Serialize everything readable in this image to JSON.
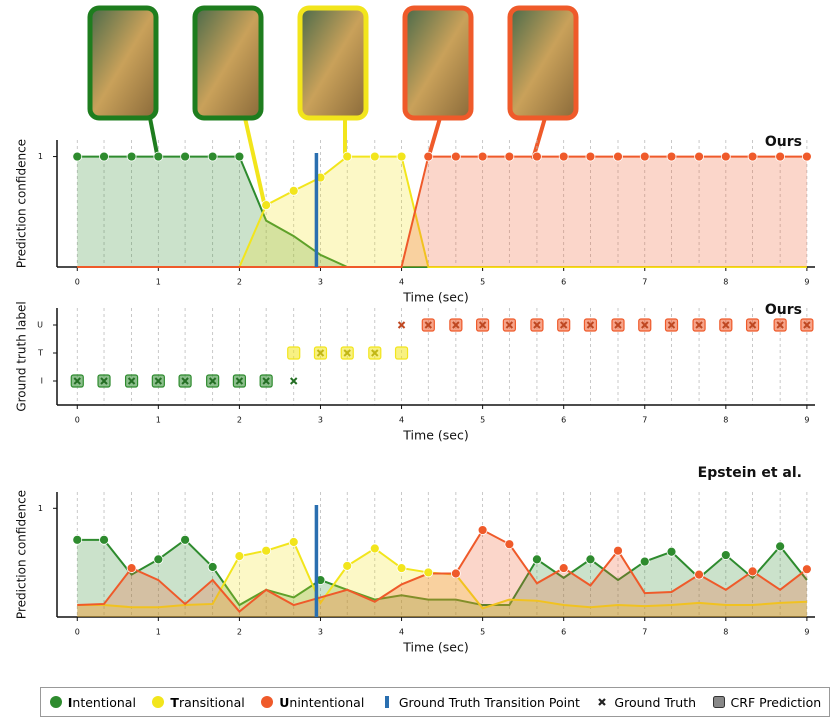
{
  "chart_data": [
    {
      "type": "line",
      "title": "Ours",
      "ylabel": "Prediction confidence",
      "xlabel": "Time (sec)",
      "x": [
        0,
        0.33,
        0.67,
        1,
        1.33,
        1.67,
        2,
        2.33,
        2.67,
        3,
        3.33,
        3.67,
        4,
        4.33,
        4.67,
        5,
        5.33,
        5.67,
        6,
        6.33,
        6.67,
        7,
        7.33,
        7.67,
        8,
        8.33,
        8.67,
        9
      ],
      "xlim": [
        -0.25,
        9.1
      ],
      "xticks": [
        0,
        1,
        2,
        3,
        4,
        5,
        6,
        7,
        8,
        9
      ],
      "ylim": [
        0,
        1.15
      ],
      "yticks": [
        1
      ],
      "grid": "x",
      "vline": 2.95,
      "vline_color": "#2a6fb0",
      "series": [
        {
          "color": "#2e8b2e",
          "values": [
            1,
            1,
            1,
            1,
            1,
            1,
            1,
            0.42,
            0.28,
            0.11,
            0,
            0,
            0,
            0,
            0,
            0,
            0,
            0,
            0,
            0,
            0,
            0,
            0,
            0,
            0,
            0,
            0,
            0
          ]
        },
        {
          "color": "#f2e51c",
          "values": [
            0,
            0,
            0,
            0,
            0,
            0,
            0,
            0.56,
            0.69,
            0.81,
            1,
            1,
            1,
            0,
            0,
            0,
            0,
            0,
            0,
            0,
            0,
            0,
            0,
            0,
            0,
            0,
            0,
            0
          ]
        },
        {
          "color": "#ef5a2a",
          "values": [
            0,
            0,
            0,
            0,
            0,
            0,
            0,
            0,
            0,
            0,
            0,
            0,
            0,
            1,
            1,
            1,
            1,
            1,
            1,
            1,
            1,
            1,
            1,
            1,
            1,
            1,
            1,
            1
          ]
        }
      ]
    },
    {
      "type": "category_scatter",
      "title": "Ours",
      "ylabel": "Ground truth label",
      "xlabel": "Time (sec)",
      "x": [
        0,
        0.33,
        0.67,
        1,
        1.33,
        1.67,
        2,
        2.33,
        2.67,
        3,
        3.33,
        3.67,
        4,
        4.33,
        4.67,
        5,
        5.33,
        5.67,
        6,
        6.33,
        6.67,
        7,
        7.33,
        7.67,
        8,
        8.33,
        8.67,
        9
      ],
      "xlim": [
        -0.25,
        9.1
      ],
      "xticks": [
        0,
        1,
        2,
        3,
        4,
        5,
        6,
        7,
        8,
        9
      ],
      "grid": "x",
      "categories": [
        "I",
        "T",
        "U"
      ],
      "category_colors": [
        "#2e8b2e",
        "#f2e51c",
        "#ef5a2a"
      ],
      "series": [
        {
          "marker": "box",
          "values": [
            "I",
            "I",
            "I",
            "I",
            "I",
            "I",
            "I",
            "I",
            "T",
            "T",
            "T",
            "T",
            "T",
            "U",
            "U",
            "U",
            "U",
            "U",
            "U",
            "U",
            "U",
            "U",
            "U",
            "U",
            "U",
            "U",
            "U",
            "U"
          ]
        },
        {
          "marker": "cross",
          "values": [
            "I",
            "I",
            "I",
            "I",
            "I",
            "I",
            "I",
            "I",
            "I",
            "T",
            "T",
            "T",
            "U",
            "U",
            "U",
            "U",
            "U",
            "U",
            "U",
            "U",
            "U",
            "U",
            "U",
            "U",
            "U",
            "U",
            "U",
            "U"
          ]
        }
      ]
    },
    {
      "type": "line",
      "title": "Epstein et al.",
      "ylabel": "Prediction confidence",
      "xlabel": "Time (sec)",
      "x": [
        0,
        0.33,
        0.67,
        1,
        1.33,
        1.67,
        2,
        2.33,
        2.67,
        3,
        3.33,
        3.67,
        4,
        4.33,
        4.67,
        5,
        5.33,
        5.67,
        6,
        6.33,
        6.67,
        7,
        7.33,
        7.67,
        8,
        8.33,
        8.67,
        9
      ],
      "xlim": [
        -0.25,
        9.1
      ],
      "xticks": [
        0,
        1,
        2,
        3,
        4,
        5,
        6,
        7,
        8,
        9
      ],
      "ylim": [
        0,
        1.15
      ],
      "yticks": [
        1
      ],
      "grid": "x",
      "vline": 2.95,
      "vline_color": "#2a6fb0",
      "series": [
        {
          "color": "#2e8b2e",
          "values": [
            0.71,
            0.71,
            0.39,
            0.53,
            0.71,
            0.46,
            0.11,
            0.25,
            0.18,
            0.34,
            0.25,
            0.16,
            0.2,
            0.16,
            0.16,
            0.11,
            0.11,
            0.53,
            0.36,
            0.53,
            0.34,
            0.51,
            0.6,
            0.36,
            0.57,
            0.36,
            0.65,
            0.34
          ]
        },
        {
          "color": "#f2e51c",
          "values": [
            0.11,
            0.11,
            0.09,
            0.09,
            0.11,
            0.12,
            0.56,
            0.61,
            0.69,
            0.13,
            0.47,
            0.63,
            0.45,
            0.41,
            0.39,
            0.08,
            0.16,
            0.15,
            0.11,
            0.09,
            0.11,
            0.1,
            0.11,
            0.13,
            0.11,
            0.11,
            0.13,
            0.14
          ]
        },
        {
          "color": "#ef5a2a",
          "values": [
            0.11,
            0.12,
            0.45,
            0.34,
            0.12,
            0.34,
            0.05,
            0.25,
            0.11,
            0.18,
            0.25,
            0.14,
            0.3,
            0.4,
            0.4,
            0.8,
            0.67,
            0.31,
            0.45,
            0.29,
            0.61,
            0.22,
            0.23,
            0.39,
            0.25,
            0.42,
            0.25,
            0.44
          ]
        }
      ]
    }
  ],
  "legend": [
    {
      "label": "Intentional",
      "color": "#2e8b2e",
      "marker": "circle"
    },
    {
      "label": "Transitional",
      "color": "#f2e51c",
      "marker": "circle"
    },
    {
      "label": "Unintentional",
      "color": "#ef5a2a",
      "marker": "circle"
    },
    {
      "label": "Ground Truth Transition Point",
      "color": "#2a6fb0",
      "marker": "bar"
    },
    {
      "label": "Ground Truth",
      "color": "#222222",
      "marker": "cross"
    },
    {
      "label": "CRF Prediction",
      "color": "#888888",
      "marker": "box"
    }
  ]
}
